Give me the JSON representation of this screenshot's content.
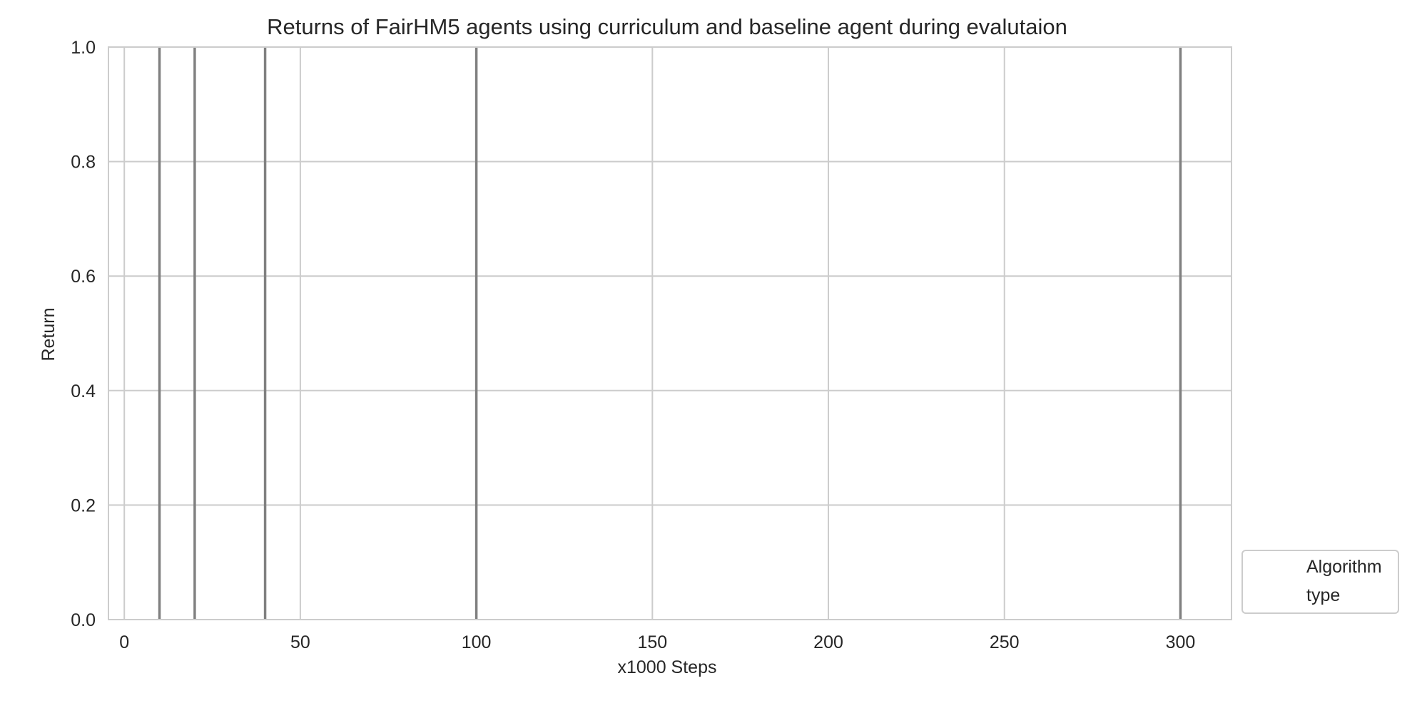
{
  "chart_data": {
    "type": "line",
    "title": "Returns of FairHM5 agents using curriculum and baseline agent during evalutaion",
    "xlabel": "x1000 Steps",
    "ylabel": "Return",
    "xlim": [
      -4.5,
      314.5
    ],
    "ylim": [
      0.0,
      1.0
    ],
    "x_ticks": [
      0,
      50,
      100,
      150,
      200,
      250,
      300
    ],
    "x_tick_labels": [
      "0",
      "50",
      "100",
      "150",
      "200",
      "250",
      "300"
    ],
    "y_ticks": [
      0.0,
      0.2,
      0.4,
      0.6,
      0.8,
      1.0
    ],
    "y_tick_labels": [
      "0.0",
      "0.2",
      "0.4",
      "0.6",
      "0.8",
      "1.0"
    ],
    "extra_gridlines_x": [
      0
    ],
    "vertical_markers": [
      10,
      20,
      40,
      100,
      300
    ],
    "vertical_marker_color": "#808080",
    "grid": true,
    "grid_color": "#cccccc",
    "series": [],
    "legend": {
      "placement": "outside-bottom-right",
      "entries": [
        "Algorithm",
        "type"
      ]
    }
  }
}
